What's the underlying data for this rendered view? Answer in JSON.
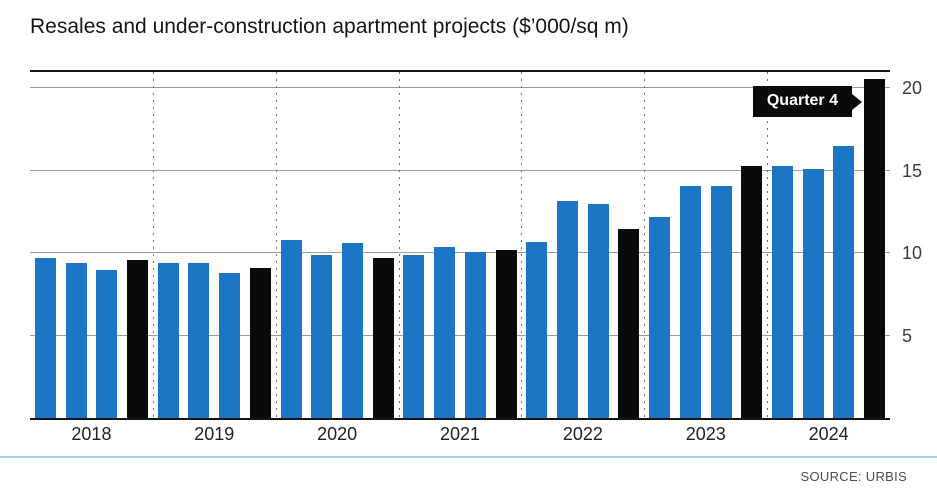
{
  "chart_data": {
    "type": "bar",
    "title": "Resales and under-construction apartment projects ($’000/sq m)",
    "annotation": "Quarter 4",
    "ylim": [
      0,
      21
    ],
    "yticks": [
      5,
      10,
      15,
      20
    ],
    "grid": true,
    "legend_position": "none",
    "bar_color": "#1d76c5",
    "q4_color": "#0a0a0a",
    "categories": [
      "2018",
      "2019",
      "2020",
      "2021",
      "2022",
      "2023",
      "2024"
    ],
    "groups": [
      {
        "year": "2018",
        "quarters": [
          "Q1",
          "Q2",
          "Q3",
          "Q4"
        ],
        "values": [
          9.7,
          9.4,
          9.0,
          9.6
        ]
      },
      {
        "year": "2019",
        "quarters": [
          "Q1",
          "Q2",
          "Q3",
          "Q4"
        ],
        "values": [
          9.4,
          9.4,
          8.8,
          9.1
        ]
      },
      {
        "year": "2020",
        "quarters": [
          "Q1",
          "Q2",
          "Q3",
          "Q4"
        ],
        "values": [
          10.8,
          9.9,
          10.6,
          9.7
        ]
      },
      {
        "year": "2021",
        "quarters": [
          "Q1",
          "Q2",
          "Q3",
          "Q4"
        ],
        "values": [
          9.9,
          10.4,
          10.1,
          10.2
        ]
      },
      {
        "year": "2022",
        "quarters": [
          "Q1",
          "Q2",
          "Q3",
          "Q4"
        ],
        "values": [
          10.7,
          13.2,
          13.0,
          11.5
        ]
      },
      {
        "year": "2023",
        "quarters": [
          "Q1",
          "Q2",
          "Q3",
          "Q4"
        ],
        "values": [
          12.2,
          14.1,
          14.1,
          15.3
        ]
      },
      {
        "year": "2024",
        "quarters": [
          "Q1",
          "Q2",
          "Q3",
          "Q4"
        ],
        "values": [
          15.3,
          15.1,
          16.5,
          20.6
        ]
      }
    ]
  },
  "source": "SOURCE: URBIS"
}
